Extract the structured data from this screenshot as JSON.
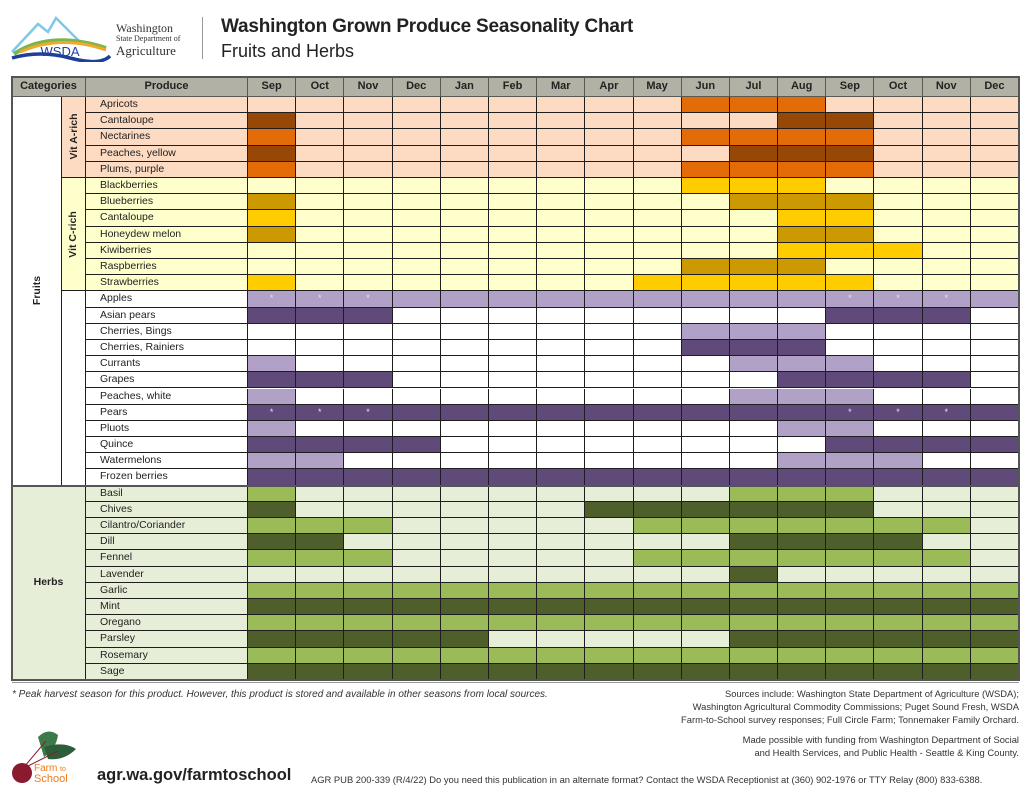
{
  "header": {
    "agency_line1": "Washington",
    "agency_line2": "State Department of",
    "agency_line3": "Agriculture",
    "logo_text": "WSDA",
    "title": "Washington Grown Produce Seasonality Chart",
    "subtitle": "Fruits and Herbs"
  },
  "chart_data": {
    "type": "heatmap",
    "title": "Washington Grown Produce Seasonality Chart",
    "subtitle": "Fruits and Herbs",
    "column_headers": {
      "categories": "Categories",
      "produce": "Produce"
    },
    "months": [
      "Sep",
      "Oct",
      "Nov",
      "Dec",
      "Jan",
      "Feb",
      "Mar",
      "Apr",
      "May",
      "Jun",
      "Jul",
      "Aug",
      "Sep",
      "Oct",
      "Nov",
      "Dec"
    ],
    "level_meaning": {
      "0": "not in season",
      "1": "in season (light shade)",
      "2": "in season (dark shade)"
    },
    "star_note": "*",
    "groups": [
      {
        "category": "Fruits",
        "subcategory": "Vit A-rich",
        "colors": {
          "bg": "#fddbc3",
          "l1": "#e36c09",
          "l2": "#974706"
        },
        "items": [
          {
            "name": "Apricots",
            "levels": [
              0,
              0,
              0,
              0,
              0,
              0,
              0,
              0,
              0,
              1,
              1,
              1,
              0,
              0,
              0,
              0
            ]
          },
          {
            "name": "Cantaloupe",
            "levels": [
              2,
              0,
              0,
              0,
              0,
              0,
              0,
              0,
              0,
              0,
              0,
              2,
              2,
              0,
              0,
              0
            ]
          },
          {
            "name": "Nectarines",
            "levels": [
              1,
              0,
              0,
              0,
              0,
              0,
              0,
              0,
              0,
              1,
              1,
              1,
              1,
              0,
              0,
              0
            ]
          },
          {
            "name": "Peaches, yellow",
            "levels": [
              2,
              0,
              0,
              0,
              0,
              0,
              0,
              0,
              0,
              0,
              2,
              2,
              2,
              0,
              0,
              0
            ]
          },
          {
            "name": "Plums, purple",
            "levels": [
              1,
              0,
              0,
              0,
              0,
              0,
              0,
              0,
              0,
              1,
              1,
              1,
              1,
              0,
              0,
              0
            ]
          }
        ]
      },
      {
        "category": "Fruits",
        "subcategory": "Vit C-rich",
        "colors": {
          "bg": "#ffffcc",
          "l1": "#ffcc00",
          "l2": "#cc9900"
        },
        "items": [
          {
            "name": "Blackberries",
            "levels": [
              0,
              0,
              0,
              0,
              0,
              0,
              0,
              0,
              0,
              1,
              1,
              1,
              0,
              0,
              0,
              0
            ]
          },
          {
            "name": "Blueberries",
            "levels": [
              2,
              0,
              0,
              0,
              0,
              0,
              0,
              0,
              0,
              0,
              2,
              2,
              2,
              0,
              0,
              0
            ]
          },
          {
            "name": "Cantaloupe",
            "levels": [
              1,
              0,
              0,
              0,
              0,
              0,
              0,
              0,
              0,
              0,
              0,
              1,
              1,
              0,
              0,
              0
            ]
          },
          {
            "name": "Honeydew melon",
            "levels": [
              2,
              0,
              0,
              0,
              0,
              0,
              0,
              0,
              0,
              0,
              0,
              2,
              2,
              0,
              0,
              0
            ]
          },
          {
            "name": "Kiwiberries",
            "levels": [
              0,
              0,
              0,
              0,
              0,
              0,
              0,
              0,
              0,
              0,
              0,
              1,
              1,
              1,
              0,
              0
            ]
          },
          {
            "name": "Raspberries",
            "levels": [
              0,
              0,
              0,
              0,
              0,
              0,
              0,
              0,
              0,
              2,
              2,
              2,
              0,
              0,
              0,
              0
            ]
          },
          {
            "name": "Strawberries",
            "levels": [
              1,
              0,
              0,
              0,
              0,
              0,
              0,
              0,
              1,
              1,
              1,
              1,
              1,
              0,
              0,
              0
            ]
          }
        ]
      },
      {
        "category": "Fruits",
        "subcategory": "",
        "colors": {
          "bg": "#ffffff",
          "l1": "#b2a1c7",
          "l2": "#5f4a7a"
        },
        "items": [
          {
            "name": "Apples",
            "levels": [
              1,
              1,
              1,
              1,
              1,
              1,
              1,
              1,
              1,
              1,
              1,
              1,
              1,
              1,
              1,
              1
            ],
            "peak_months": [
              0,
              1,
              2,
              12,
              13,
              14
            ]
          },
          {
            "name": "Asian pears",
            "levels": [
              2,
              2,
              2,
              0,
              0,
              0,
              0,
              0,
              0,
              0,
              0,
              0,
              2,
              2,
              2,
              0
            ]
          },
          {
            "name": "Cherries, Bings",
            "levels": [
              0,
              0,
              0,
              0,
              0,
              0,
              0,
              0,
              0,
              1,
              1,
              1,
              0,
              0,
              0,
              0
            ]
          },
          {
            "name": "Cherries, Rainiers",
            "levels": [
              0,
              0,
              0,
              0,
              0,
              0,
              0,
              0,
              0,
              2,
              2,
              2,
              0,
              0,
              0,
              0
            ]
          },
          {
            "name": "Currants",
            "levels": [
              1,
              0,
              0,
              0,
              0,
              0,
              0,
              0,
              0,
              0,
              1,
              1,
              1,
              0,
              0,
              0
            ]
          },
          {
            "name": "Grapes",
            "levels": [
              2,
              2,
              2,
              0,
              0,
              0,
              0,
              0,
              0,
              0,
              0,
              2,
              2,
              2,
              2,
              0
            ]
          },
          {
            "name": "Peaches, white",
            "levels": [
              1,
              0,
              0,
              0,
              0,
              0,
              0,
              0,
              0,
              0,
              1,
              1,
              1,
              0,
              0,
              0
            ]
          },
          {
            "name": "Pears",
            "levels": [
              2,
              2,
              2,
              2,
              2,
              2,
              2,
              2,
              2,
              2,
              2,
              2,
              2,
              2,
              2,
              2
            ],
            "peak_months": [
              0,
              1,
              2,
              12,
              13,
              14
            ]
          },
          {
            "name": "Pluots",
            "levels": [
              1,
              0,
              0,
              0,
              0,
              0,
              0,
              0,
              0,
              0,
              0,
              1,
              1,
              0,
              0,
              0
            ]
          },
          {
            "name": "Quince",
            "levels": [
              2,
              2,
              2,
              2,
              0,
              0,
              0,
              0,
              0,
              0,
              0,
              0,
              2,
              2,
              2,
              2
            ]
          },
          {
            "name": "Watermelons",
            "levels": [
              1,
              1,
              0,
              0,
              0,
              0,
              0,
              0,
              0,
              0,
              0,
              1,
              1,
              1,
              0,
              0
            ]
          },
          {
            "name": "Frozen berries",
            "levels": [
              2,
              2,
              2,
              2,
              2,
              2,
              2,
              2,
              2,
              2,
              2,
              2,
              2,
              2,
              2,
              2
            ]
          }
        ]
      },
      {
        "category": "Herbs",
        "subcategory": "",
        "colors": {
          "bg": "#e7eed8",
          "l1": "#9bbb59",
          "l2": "#4f5f2c"
        },
        "items": [
          {
            "name": "Basil",
            "levels": [
              1,
              0,
              0,
              0,
              0,
              0,
              0,
              0,
              0,
              0,
              1,
              1,
              1,
              0,
              0,
              0
            ]
          },
          {
            "name": "Chives",
            "levels": [
              2,
              0,
              0,
              0,
              0,
              0,
              0,
              2,
              2,
              2,
              2,
              2,
              2,
              0,
              0,
              0
            ]
          },
          {
            "name": "Cilantro/Coriander",
            "levels": [
              1,
              1,
              1,
              0,
              0,
              0,
              0,
              0,
              1,
              1,
              1,
              1,
              1,
              1,
              1,
              0
            ]
          },
          {
            "name": "Dill",
            "levels": [
              2,
              2,
              0,
              0,
              0,
              0,
              0,
              0,
              0,
              0,
              2,
              2,
              2,
              2,
              0,
              0
            ]
          },
          {
            "name": "Fennel",
            "levels": [
              1,
              1,
              1,
              0,
              0,
              0,
              0,
              0,
              1,
              1,
              1,
              1,
              1,
              1,
              1,
              0
            ]
          },
          {
            "name": "Lavender",
            "levels": [
              0,
              0,
              0,
              0,
              0,
              0,
              0,
              0,
              0,
              0,
              2,
              0,
              0,
              0,
              0,
              0
            ]
          },
          {
            "name": "Garlic",
            "levels": [
              1,
              1,
              1,
              1,
              1,
              1,
              1,
              1,
              1,
              1,
              1,
              1,
              1,
              1,
              1,
              1
            ]
          },
          {
            "name": "Mint",
            "levels": [
              2,
              2,
              2,
              2,
              2,
              2,
              2,
              2,
              2,
              2,
              2,
              2,
              2,
              2,
              2,
              2
            ]
          },
          {
            "name": "Oregano",
            "levels": [
              1,
              1,
              1,
              1,
              1,
              1,
              1,
              1,
              1,
              1,
              1,
              1,
              1,
              1,
              1,
              1
            ]
          },
          {
            "name": "Parsley",
            "levels": [
              2,
              2,
              2,
              2,
              2,
              0,
              0,
              0,
              0,
              0,
              2,
              2,
              2,
              2,
              2,
              2
            ]
          },
          {
            "name": "Rosemary",
            "levels": [
              1,
              1,
              1,
              1,
              1,
              1,
              1,
              1,
              1,
              1,
              1,
              1,
              1,
              1,
              1,
              1
            ]
          },
          {
            "name": "Sage",
            "levels": [
              2,
              2,
              2,
              2,
              2,
              2,
              2,
              2,
              2,
              2,
              2,
              2,
              2,
              2,
              2,
              2
            ]
          }
        ]
      }
    ]
  },
  "footer": {
    "footnote": "* Peak harvest season for this product. However, this product is stored and available in other seasons from local sources.",
    "sources": [
      "Sources include: Washington State Department of Agriculture (WSDA);",
      "Washington Agricultural Commodity Commissions; Puget Sound Fresh, WSDA",
      "Farm-to-School survey responses; Full Circle Farm; Tonnemaker Family Orchard."
    ],
    "funding": [
      "Made possible with funding from Washington Department of Social",
      "and Health Services, and Public Health - Seattle & King County."
    ],
    "farm_to_school_logo_text": [
      "Farm",
      "to",
      "School"
    ],
    "url": "agr.wa.gov/farmtoschool",
    "publication": "AGR PUB 200-339 (R/4/22) Do you need this publication in an alternate format? Contact the WSDA Receptionist at (360) 902-1976 or TTY Relay (800) 833-6388."
  }
}
